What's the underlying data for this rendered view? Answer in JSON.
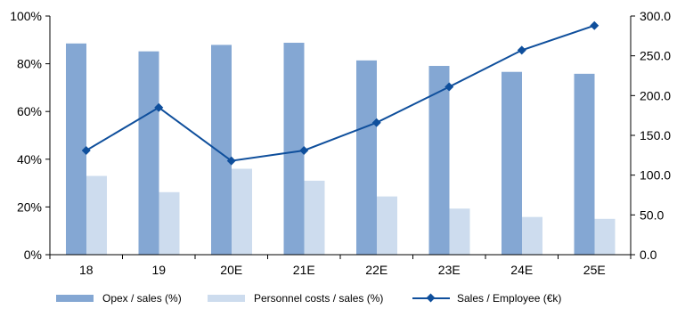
{
  "chart_data": {
    "type": "bar",
    "categories": [
      "18",
      "19",
      "20E",
      "21E",
      "22E",
      "23E",
      "24E",
      "25E"
    ],
    "series": [
      {
        "name": "Opex / sales (%)",
        "type": "bar",
        "axis": "left",
        "color": "#84a7d3",
        "values": [
          88.5,
          85.2,
          87.9,
          88.8,
          81.4,
          79.1,
          76.6,
          75.8
        ]
      },
      {
        "name": "Personnel costs / sales (%)",
        "type": "bar",
        "axis": "left",
        "color": "#cddcee",
        "values": [
          33.0,
          26.2,
          36.0,
          31.0,
          24.4,
          19.3,
          15.8,
          15.0
        ]
      },
      {
        "name": "Sales / Employee (€k)",
        "type": "line",
        "axis": "right",
        "color": "#0f4f9c",
        "values": [
          131,
          185,
          118,
          131,
          166,
          211,
          257,
          288
        ]
      }
    ],
    "y_left": {
      "ticks": [
        "0%",
        "20%",
        "40%",
        "60%",
        "80%",
        "100%"
      ],
      "min": 0,
      "max": 100
    },
    "y_right": {
      "ticks": [
        "0.0",
        "50.0",
        "100.0",
        "150.0",
        "200.0",
        "250.0",
        "300.0"
      ],
      "min": 0,
      "max": 300
    },
    "legend_position": "bottom",
    "grid": false
  }
}
